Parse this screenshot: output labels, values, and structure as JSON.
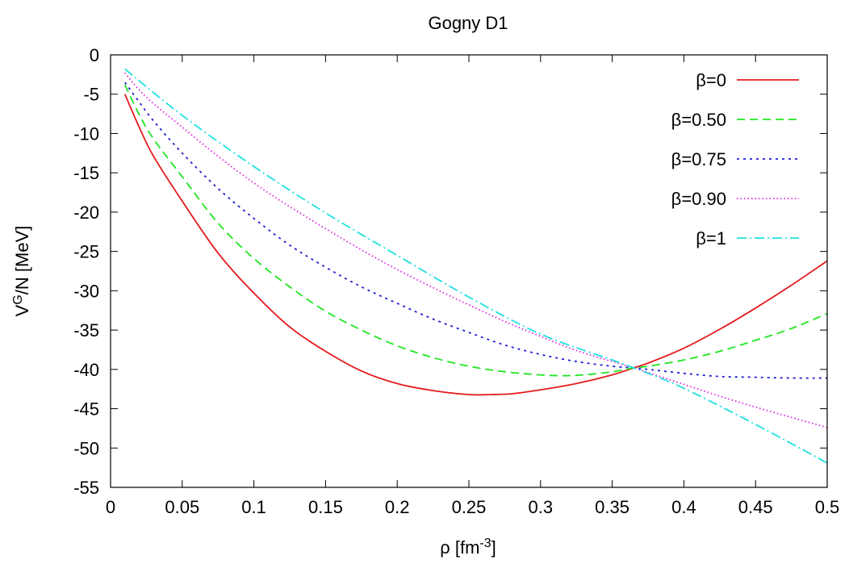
{
  "chart_data": {
    "type": "line",
    "title": "Gogny D1",
    "xlabel": {
      "base": "ρ [fm",
      "sup": "-3",
      "tail": "]"
    },
    "ylabel": {
      "base": "V",
      "sup": "G",
      "tail": "/N [MeV]"
    },
    "xlim": [
      0,
      0.5
    ],
    "ylim": [
      -55,
      0
    ],
    "xticks": [
      {
        "value": 0,
        "label": "0"
      },
      {
        "value": 0.05,
        "label": "0.05"
      },
      {
        "value": 0.1,
        "label": "0.1"
      },
      {
        "value": 0.15,
        "label": "0.15"
      },
      {
        "value": 0.2,
        "label": "0.2"
      },
      {
        "value": 0.25,
        "label": "0.25"
      },
      {
        "value": 0.3,
        "label": "0.3"
      },
      {
        "value": 0.35,
        "label": "0.35"
      },
      {
        "value": 0.4,
        "label": "0.4"
      },
      {
        "value": 0.45,
        "label": "0.45"
      },
      {
        "value": 0.5,
        "label": "0.5"
      }
    ],
    "yticks": [
      {
        "value": 0,
        "label": "0"
      },
      {
        "value": -5,
        "label": "-5"
      },
      {
        "value": -10,
        "label": "-10"
      },
      {
        "value": -15,
        "label": "-15"
      },
      {
        "value": -20,
        "label": "-20"
      },
      {
        "value": -25,
        "label": "-25"
      },
      {
        "value": -30,
        "label": "-30"
      },
      {
        "value": -35,
        "label": "-35"
      },
      {
        "value": -40,
        "label": "-40"
      },
      {
        "value": -45,
        "label": "-45"
      },
      {
        "value": -50,
        "label": "-50"
      },
      {
        "value": -55,
        "label": "-55"
      }
    ],
    "grid": false,
    "legend": "top-right",
    "series": [
      {
        "name": "β=0",
        "color": "#e41a1c",
        "dash": "solid",
        "x": [
          0.01,
          0.02,
          0.03,
          0.05,
          0.075,
          0.1,
          0.125,
          0.15,
          0.175,
          0.2,
          0.225,
          0.25,
          0.265,
          0.28,
          0.3,
          0.325,
          0.35,
          0.365,
          0.375,
          0.4,
          0.425,
          0.45,
          0.475,
          0.5
        ],
        "y": [
          -5.0,
          -9.2,
          -12.9,
          -18.6,
          -25.2,
          -30.3,
          -34.6,
          -37.7,
          -40.2,
          -41.8,
          -42.7,
          -43.2,
          -43.2,
          -43.1,
          -42.6,
          -41.8,
          -40.7,
          -39.8,
          -39.2,
          -37.3,
          -34.9,
          -32.2,
          -29.3,
          -26.2
        ]
      },
      {
        "name": "β=0.50",
        "color": "#1ee61e",
        "dash": "10,6",
        "x": [
          0.01,
          0.02,
          0.03,
          0.05,
          0.075,
          0.1,
          0.125,
          0.15,
          0.175,
          0.2,
          0.225,
          0.25,
          0.275,
          0.3,
          0.315,
          0.33,
          0.35,
          0.365,
          0.375,
          0.4,
          0.425,
          0.45,
          0.475,
          0.5
        ],
        "y": [
          -3.8,
          -7.6,
          -10.7,
          -15.5,
          -21.4,
          -25.9,
          -29.5,
          -32.6,
          -35.0,
          -37.0,
          -38.5,
          -39.6,
          -40.3,
          -40.7,
          -40.8,
          -40.7,
          -40.3,
          -39.8,
          -39.6,
          -38.8,
          -37.7,
          -36.3,
          -34.8,
          -32.9
        ]
      },
      {
        "name": "β=0.75",
        "color": "#1f1fd1",
        "dash": "3,5",
        "x": [
          0.01,
          0.02,
          0.03,
          0.05,
          0.075,
          0.1,
          0.125,
          0.15,
          0.175,
          0.2,
          0.225,
          0.25,
          0.275,
          0.3,
          0.325,
          0.35,
          0.365,
          0.375,
          0.4,
          0.425,
          0.45,
          0.475,
          0.5
        ],
        "y": [
          -3.5,
          -6.0,
          -8.4,
          -12.5,
          -17.0,
          -20.8,
          -24.2,
          -27.0,
          -29.5,
          -31.6,
          -33.6,
          -35.3,
          -36.9,
          -38.1,
          -39.0,
          -39.6,
          -39.8,
          -40.0,
          -40.5,
          -40.9,
          -41.0,
          -41.1,
          -41.1
        ]
      },
      {
        "name": "β=0.90",
        "color": "#e020e0",
        "dash": "1.5,3",
        "x": [
          0.01,
          0.025,
          0.05,
          0.075,
          0.1,
          0.125,
          0.15,
          0.175,
          0.2,
          0.225,
          0.25,
          0.275,
          0.3,
          0.325,
          0.35,
          0.365,
          0.375,
          0.4,
          0.425,
          0.45,
          0.475,
          0.5
        ],
        "y": [
          -2.3,
          -5.4,
          -9.2,
          -12.9,
          -16.3,
          -19.3,
          -22.1,
          -24.8,
          -27.3,
          -29.6,
          -31.8,
          -33.9,
          -35.8,
          -37.6,
          -39.0,
          -39.8,
          -40.4,
          -41.9,
          -43.4,
          -44.8,
          -46.1,
          -47.4
        ]
      },
      {
        "name": "β=1",
        "color": "#1ee1e1",
        "dash": "12,4,2,4",
        "x": [
          0.01,
          0.05,
          0.1,
          0.15,
          0.2,
          0.25,
          0.3,
          0.35,
          0.365,
          0.375,
          0.4,
          0.45,
          0.5
        ],
        "y": [
          -1.8,
          -7.7,
          -14.2,
          -20.1,
          -25.5,
          -30.8,
          -35.5,
          -38.8,
          -39.8,
          -40.5,
          -42.4,
          -47.0,
          -51.9
        ]
      }
    ]
  }
}
